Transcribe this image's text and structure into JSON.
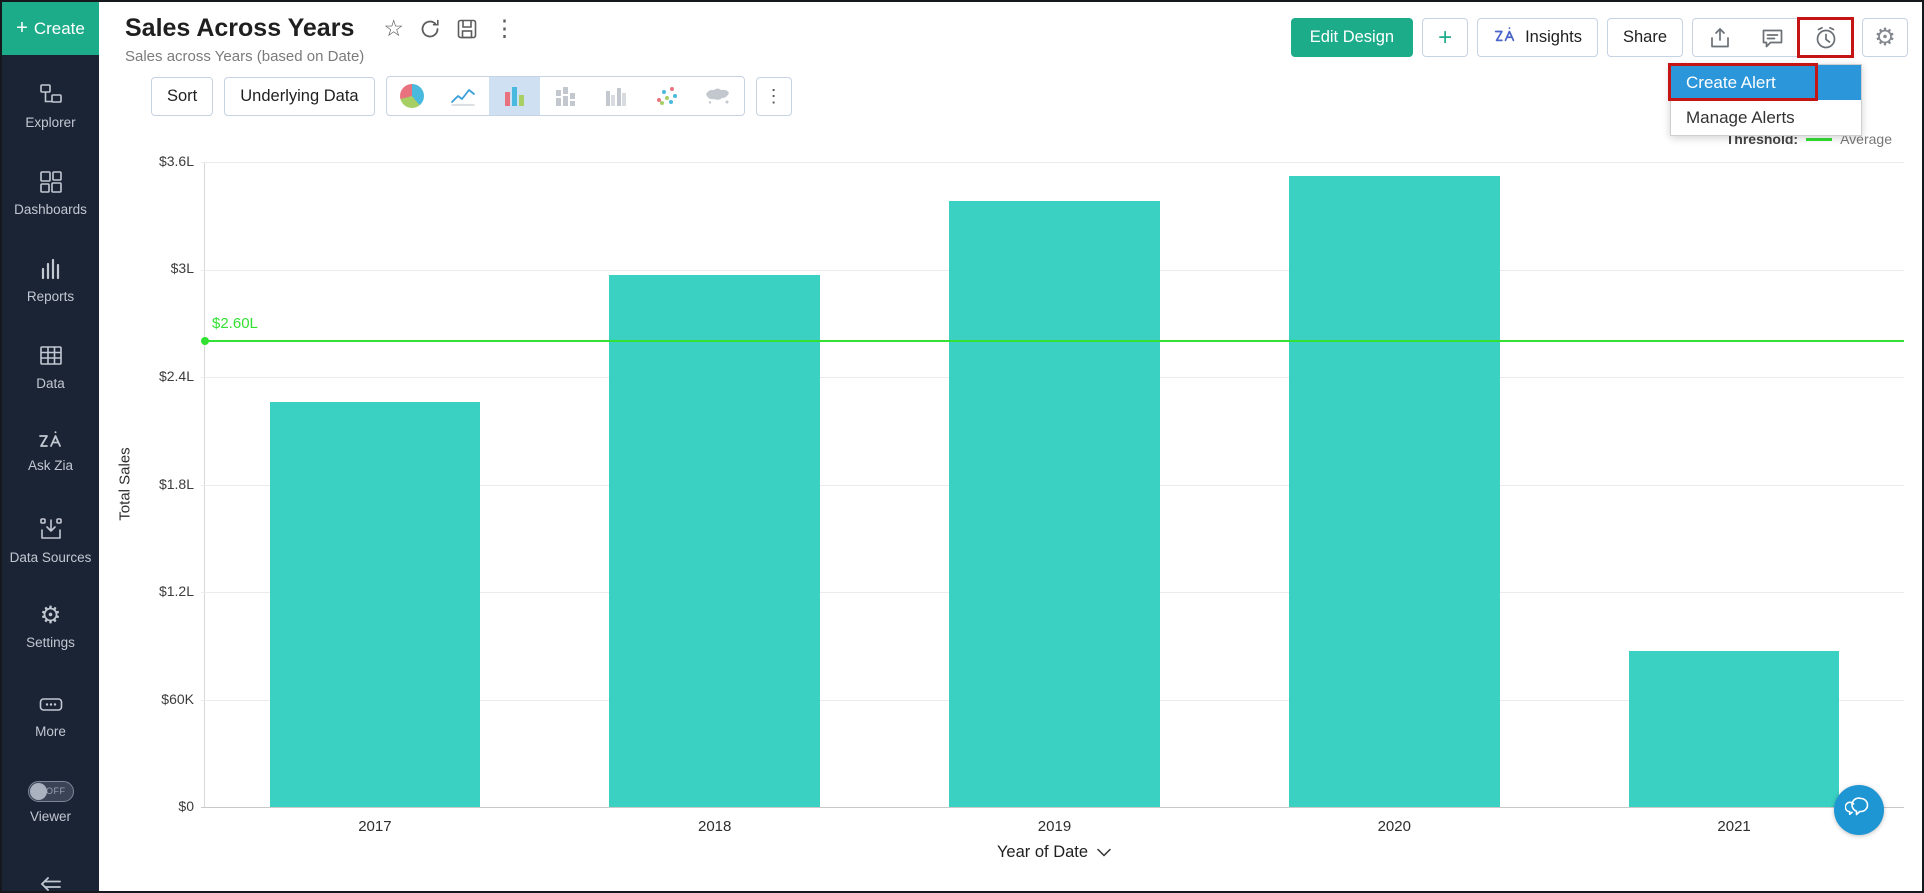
{
  "glyphs": {
    "plus": "+",
    "star": "☆",
    "kebab": "⋮",
    "gear": "⚙",
    "chevron_down": "∨"
  },
  "colors": {
    "accent_green": "#1dac8a",
    "sidebar_bg": "#1b2435",
    "bar_teal": "#3ad0c2",
    "threshold_green": "#32e132",
    "menu_highlight_blue": "#2c96da",
    "annotation_red": "#c41414",
    "chat_blue": "#1e96d4",
    "selected_icon_bg": "#cfe0f2"
  },
  "sidebar": {
    "create_label": "Create",
    "items": [
      {
        "label": "Explorer",
        "icon": "explorer-icon"
      },
      {
        "label": "Dashboards",
        "icon": "dashboards-icon"
      },
      {
        "label": "Reports",
        "icon": "reports-icon"
      },
      {
        "label": "Data",
        "icon": "data-table-icon"
      },
      {
        "label": "Ask Zia",
        "icon": "zia-icon"
      },
      {
        "label": "Data Sources",
        "icon": "data-sources-icon"
      },
      {
        "label": "Settings",
        "icon": "settings-gear-icon"
      },
      {
        "label": "More",
        "icon": "more-ellipsis-icon"
      }
    ],
    "viewer": {
      "label": "Viewer",
      "state": "OFF"
    }
  },
  "header": {
    "title": "Sales Across Years",
    "subtitle": "Sales across Years (based on Date)",
    "buttons": {
      "edit_design": "Edit Design",
      "plus": "+",
      "insights": "Insights",
      "share": "Share"
    }
  },
  "toolbar": {
    "sort": "Sort",
    "underlying_data": "Underlying Data",
    "chart_types": [
      {
        "name": "pie-chart-icon"
      },
      {
        "name": "line-chart-icon"
      },
      {
        "name": "bar-chart-icon",
        "selected": true
      },
      {
        "name": "stacked-bar-chart-icon"
      },
      {
        "name": "grouped-bar-chart-icon"
      },
      {
        "name": "scatter-plot-icon"
      },
      {
        "name": "map-chart-icon"
      }
    ],
    "selected_index": 2
  },
  "alert_menu": {
    "items": [
      {
        "label": "Create Alert",
        "highlighted": true,
        "annotated": true
      },
      {
        "label": "Manage Alerts",
        "highlighted": false,
        "annotated": false
      }
    ]
  },
  "chart_data": {
    "type": "bar",
    "categories": [
      "2017",
      "2018",
      "2019",
      "2020",
      "2021"
    ],
    "values": [
      226000,
      297000,
      338000,
      352000,
      87000
    ],
    "xlabel": "Year of Date",
    "ylabel": "Total Sales",
    "ylim": [
      0,
      360000
    ],
    "y_ticks": [
      {
        "label": "$3.6L",
        "value": 360000
      },
      {
        "label": "$3L",
        "value": 300000
      },
      {
        "label": "$2.4L",
        "value": 240000
      },
      {
        "label": "$1.8L",
        "value": 180000
      },
      {
        "label": "$1.2L",
        "value": 120000
      },
      {
        "label": "$60K",
        "value": 60000
      },
      {
        "label": "$0",
        "value": 0
      }
    ],
    "grid": "horizontal",
    "legend_position": "top-right",
    "bar_color": "#3ad0c2",
    "threshold": {
      "legend_title": "Threshold:",
      "legend": "Average",
      "label": "$2.60L",
      "value": 260000,
      "color": "#32e132"
    }
  }
}
